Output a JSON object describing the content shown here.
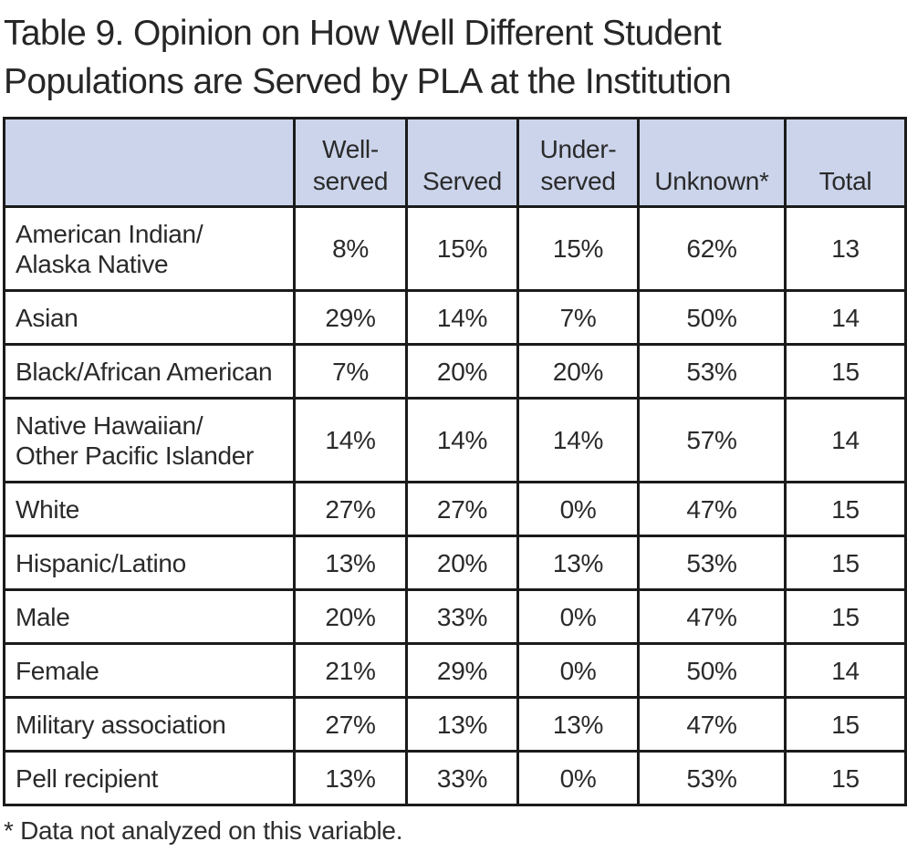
{
  "title": "Table 9. Opinion on How Well Different Student\nPopulations are Served by PLA at the Institution",
  "footnote": "* Data not analyzed on this variable.",
  "colors": {
    "header_bg": "#cbd4eb",
    "border": "#1b1b1b",
    "text": "#2a2a2a"
  },
  "chart_data": {
    "type": "table",
    "title": "Table 9. Opinion on How Well Different Student Populations are Served by PLA at the Institution",
    "columns": [
      "",
      "Well-served",
      "Served",
      "Under-served",
      "Unknown*",
      "Total"
    ],
    "rows": [
      {
        "label": "American Indian/\nAlaska Native",
        "values": [
          "8%",
          "15%",
          "15%",
          "62%",
          "13"
        ]
      },
      {
        "label": "Asian",
        "values": [
          "29%",
          "14%",
          "7%",
          "50%",
          "14"
        ]
      },
      {
        "label": "Black/African American",
        "values": [
          "7%",
          "20%",
          "20%",
          "53%",
          "15"
        ]
      },
      {
        "label": "Native Hawaiian/\nOther Pacific Islander",
        "values": [
          "14%",
          "14%",
          "14%",
          "57%",
          "14"
        ]
      },
      {
        "label": "White",
        "values": [
          "27%",
          "27%",
          "0%",
          "47%",
          "15"
        ]
      },
      {
        "label": "Hispanic/Latino",
        "values": [
          "13%",
          "20%",
          "13%",
          "53%",
          "15"
        ]
      },
      {
        "label": "Male",
        "values": [
          "20%",
          "33%",
          "0%",
          "47%",
          "15"
        ]
      },
      {
        "label": "Female",
        "values": [
          "21%",
          "29%",
          "0%",
          "50%",
          "14"
        ]
      },
      {
        "label": "Military association",
        "values": [
          "27%",
          "13%",
          "13%",
          "47%",
          "15"
        ]
      },
      {
        "label": "Pell recipient",
        "values": [
          "13%",
          "33%",
          "0%",
          "53%",
          "15"
        ]
      }
    ]
  }
}
